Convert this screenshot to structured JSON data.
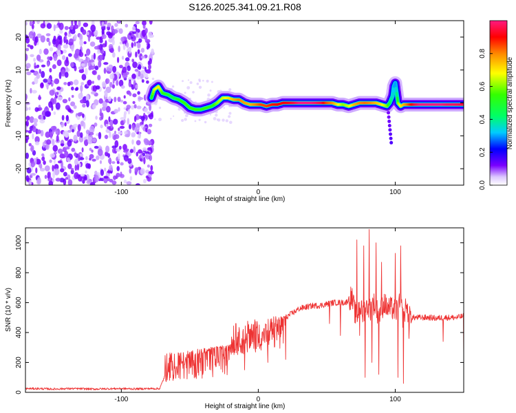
{
  "title": "S126.2025.341.09.21.R08",
  "chart_data": [
    {
      "type": "heatmap",
      "xlabel": "Height of straight line (km)",
      "ylabel": "Frequency (Hz)",
      "xlim": [
        -170,
        150
      ],
      "ylim": [
        -25,
        25
      ],
      "xticks": [
        -100,
        0,
        100
      ],
      "yticks": [
        -20,
        -10,
        0,
        10,
        20
      ],
      "grid": false,
      "noise_region_x": [
        -170,
        -77
      ],
      "ridge": {
        "x": [
          -78,
          -76,
          -73,
          -70,
          -66,
          -62,
          -58,
          -54,
          -50,
          -46,
          -42,
          -38,
          -34,
          -30,
          -26,
          -22,
          -18,
          -14,
          -10,
          -6,
          -2,
          2,
          6,
          10,
          14,
          18,
          22,
          26,
          30,
          34,
          38,
          42,
          46,
          50,
          54,
          58,
          62,
          66,
          70,
          74,
          78,
          82,
          86,
          90,
          94,
          96,
          98,
          99,
          100,
          101,
          102,
          104,
          106,
          110,
          114,
          118,
          122,
          126,
          130,
          134,
          138,
          142,
          146,
          150
        ],
        "y": [
          1.5,
          4,
          5,
          3,
          2.5,
          1.5,
          1,
          0,
          -1.5,
          -2,
          -2,
          -1.5,
          -1,
          0,
          1.5,
          1.5,
          1,
          1,
          0,
          -0.5,
          -0.5,
          -0.5,
          -1,
          -0.5,
          -0.5,
          0,
          0,
          0,
          0,
          0,
          0,
          0,
          0,
          0,
          0,
          -0.5,
          -0.5,
          -1,
          -0.5,
          0,
          0,
          0,
          0,
          -0.5,
          -1,
          0,
          2,
          5,
          6,
          3,
          0,
          -1,
          -0.5,
          -0.5,
          -0.5,
          -0.5,
          -0.5,
          -0.5,
          -0.5,
          -0.5,
          -0.5,
          -0.5,
          -0.5,
          -0.5
        ],
        "amplitude": [
          0.5,
          0.65,
          0.7,
          0.55,
          0.5,
          0.45,
          0.5,
          0.55,
          0.55,
          0.55,
          0.5,
          0.55,
          0.5,
          0.6,
          0.65,
          0.7,
          0.75,
          0.8,
          0.78,
          0.75,
          0.8,
          0.85,
          0.85,
          0.88,
          0.9,
          0.9,
          0.92,
          0.95,
          1.0,
          1.0,
          1.0,
          0.98,
          0.95,
          0.85,
          0.8,
          0.7,
          0.6,
          0.65,
          0.75,
          0.8,
          0.82,
          0.8,
          0.75,
          0.7,
          0.6,
          0.45,
          0.35,
          0.3,
          0.3,
          0.4,
          0.6,
          0.7,
          0.75,
          0.85,
          0.95,
          1.0,
          1.0,
          1.0,
          1.0,
          1.0,
          0.98,
          0.98,
          0.97,
          0.95
        ]
      },
      "colorbar": {
        "label": "Normalized spectral amplitude",
        "range": [
          0.0,
          1.0
        ],
        "ticks": [
          0.0,
          0.2,
          0.4,
          0.6,
          0.8
        ],
        "tick_labels": [
          "0.0",
          "0.2",
          "0.4",
          "0.6",
          "0.8"
        ]
      }
    },
    {
      "type": "line",
      "xlabel": "Height of straight line (km)",
      "ylabel": "SNR (10 * v/v)",
      "xlim": [
        -170,
        150
      ],
      "ylim": [
        0,
        1100
      ],
      "xticks": [
        -100,
        0,
        100
      ],
      "yticks": [
        0,
        200,
        400,
        600,
        800,
        1000
      ],
      "color": "#ee3333",
      "grid": false,
      "series": [
        {
          "name": "SNR",
          "x": [
            -170,
            -160,
            -150,
            -140,
            -130,
            -120,
            -110,
            -100,
            -90,
            -80,
            -72,
            -66,
            -60,
            -55,
            -50,
            -45,
            -40,
            -35,
            -30,
            -25,
            -20,
            -15,
            -10,
            -5,
            0,
            5,
            10,
            15,
            20,
            25,
            30,
            35,
            40,
            45,
            50,
            55,
            60,
            64,
            66,
            68,
            70,
            72,
            74,
            76,
            78,
            80,
            82,
            84,
            86,
            88,
            90,
            92,
            94,
            96,
            98,
            100,
            102,
            104,
            106,
            108,
            110,
            115,
            120,
            125,
            130,
            135,
            140,
            145,
            150
          ],
          "y": [
            25,
            25,
            22,
            25,
            24,
            22,
            24,
            25,
            23,
            25,
            25,
            160,
            165,
            190,
            210,
            240,
            260,
            280,
            300,
            300,
            320,
            340,
            360,
            370,
            380,
            400,
            430,
            460,
            500,
            530,
            560,
            570,
            580,
            580,
            590,
            600,
            600,
            600,
            620,
            640,
            560,
            480,
            600,
            520,
            560,
            580,
            560,
            600,
            560,
            520,
            560,
            600,
            560,
            560,
            560,
            540,
            560,
            600,
            480,
            580,
            500,
            500,
            500,
            500,
            495,
            500,
            500,
            500,
            510
          ],
          "range_band": [
            {
              "x_from": -68,
              "x_to": -20,
              "low": 60,
              "high": 260
            },
            {
              "x_from": -20,
              "x_to": 20,
              "low": 240,
              "high": 460
            }
          ],
          "spikes": [
            {
              "x": 72,
              "y": 1020
            },
            {
              "x": 74,
              "y": 380
            },
            {
              "x": 77,
              "y": 980
            },
            {
              "x": 78,
              "y": 100
            },
            {
              "x": 81,
              "y": 1090
            },
            {
              "x": 83,
              "y": 200
            },
            {
              "x": 86,
              "y": 1000
            },
            {
              "x": 88,
              "y": 120
            },
            {
              "x": 90,
              "y": 870
            },
            {
              "x": 100,
              "y": 930
            },
            {
              "x": 102,
              "y": 100
            },
            {
              "x": 104,
              "y": 980
            },
            {
              "x": 106,
              "y": 60
            },
            {
              "x": 108,
              "y": 560
            },
            {
              "x": 110,
              "y": 360
            },
            {
              "x": 135,
              "y": 340
            },
            {
              "x": 150,
              "y": 230
            },
            {
              "x": 60,
              "y": 380
            },
            {
              "x": 52,
              "y": 460
            },
            {
              "x": 20,
              "y": 220
            },
            {
              "x": 7,
              "y": 200
            },
            {
              "x": -10,
              "y": 150
            }
          ]
        }
      ]
    }
  ]
}
